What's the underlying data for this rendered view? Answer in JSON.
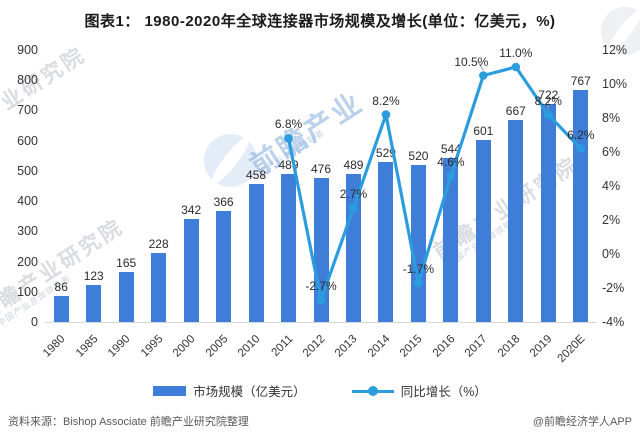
{
  "title": "图表1： 1980-2020年全球连接器市场规模及增长(单位：亿美元，%)",
  "chart_data": {
    "type": "bar+line",
    "categories": [
      "1980",
      "1985",
      "1990",
      "1995",
      "2000",
      "2005",
      "2010",
      "2011",
      "2012",
      "2013",
      "2014",
      "2015",
      "2016",
      "2017",
      "2018",
      "2019",
      "2020E"
    ],
    "series": [
      {
        "name": "市场规模（亿美元）",
        "type": "bar",
        "axis": "left",
        "values": [
          86,
          123,
          165,
          228,
          342,
          366,
          458,
          489,
          476,
          489,
          529,
          520,
          544,
          601,
          667,
          722,
          767
        ]
      },
      {
        "name": "同比增长（%）",
        "type": "line",
        "axis": "right",
        "values": [
          null,
          null,
          null,
          null,
          null,
          null,
          null,
          6.8,
          -2.7,
          2.7,
          8.2,
          -1.7,
          4.6,
          10.5,
          11.0,
          8.2,
          6.2
        ],
        "labels": [
          null,
          null,
          null,
          null,
          null,
          null,
          null,
          "6.8%",
          "-2.7%",
          "2.7%",
          "8.2%",
          "-1.7%",
          "4.6%",
          "10.5%",
          "11.0%",
          "8.2%",
          "6.2%"
        ]
      }
    ],
    "left_axis": {
      "min": 0,
      "max": 900,
      "ticks": [
        900,
        800,
        700,
        600,
        500,
        400,
        300,
        200,
        100,
        0
      ]
    },
    "right_axis": {
      "min": -4,
      "max": 12,
      "ticks": [
        "12%",
        "10%",
        "8%",
        "6%",
        "4%",
        "2%",
        "0%",
        "-2%",
        "-4%"
      ]
    },
    "legend_position": "bottom",
    "grid": "off",
    "colors": {
      "bar": "#3F7ED8",
      "line": "#2B9CDE",
      "leader": "#9aa0a6"
    },
    "layout": {
      "leader_indices": [
        13,
        15
      ],
      "label_dx": {
        "13": -12
      }
    }
  },
  "legend": {
    "bar_label": "市场规模（亿美元）",
    "line_label": "同比增长（%）"
  },
  "footer": {
    "source": "资料来源：Bishop Associate 前瞻产业研究院整理",
    "credit": "@前瞻经济学人APP"
  },
  "watermarks": {
    "brand": "前瞻产业研究院",
    "brand_short": "前瞻产业",
    "tagline": "中国产业咨询领导者"
  }
}
